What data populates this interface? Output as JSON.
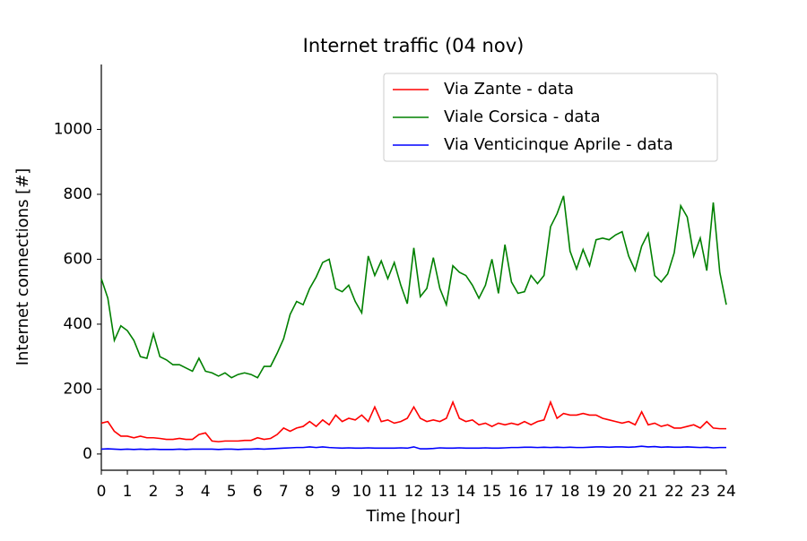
{
  "chart_data": {
    "type": "line",
    "title": "Internet traffic (04 nov)",
    "xlabel": "Time [hour]",
    "ylabel": "Internet connections [#]",
    "x": [
      0,
      0.25,
      0.5,
      0.75,
      1,
      1.25,
      1.5,
      1.75,
      2,
      2.25,
      2.5,
      2.75,
      3,
      3.25,
      3.5,
      3.75,
      4,
      4.25,
      4.5,
      4.75,
      5,
      5.25,
      5.5,
      5.75,
      6,
      6.25,
      6.5,
      6.75,
      7,
      7.25,
      7.5,
      7.75,
      8,
      8.25,
      8.5,
      8.75,
      9,
      9.25,
      9.5,
      9.75,
      10,
      10.25,
      10.5,
      10.75,
      11,
      11.25,
      11.5,
      11.75,
      12,
      12.25,
      12.5,
      12.75,
      13,
      13.25,
      13.5,
      13.75,
      14,
      14.25,
      14.5,
      14.75,
      15,
      15.25,
      15.5,
      15.75,
      16,
      16.25,
      16.5,
      16.75,
      17,
      17.25,
      17.5,
      17.75,
      18,
      18.25,
      18.5,
      18.75,
      19,
      19.25,
      19.5,
      19.75,
      20,
      20.25,
      20.5,
      20.75,
      21,
      21.25,
      21.5,
      21.75,
      22,
      22.25,
      22.5,
      22.75,
      23,
      23.25,
      23.5,
      23.75,
      24
    ],
    "series": [
      {
        "name": "Via Zante - data",
        "color": "#ff0000",
        "values": [
          95,
          100,
          70,
          55,
          55,
          50,
          55,
          50,
          50,
          48,
          45,
          45,
          48,
          45,
          45,
          60,
          65,
          40,
          38,
          40,
          40,
          40,
          42,
          42,
          50,
          45,
          48,
          60,
          80,
          70,
          80,
          85,
          100,
          85,
          105,
          90,
          120,
          100,
          110,
          105,
          120,
          100,
          145,
          100,
          105,
          95,
          100,
          110,
          145,
          110,
          100,
          105,
          100,
          110,
          160,
          110,
          100,
          105,
          90,
          95,
          85,
          95,
          90,
          95,
          90,
          100,
          90,
          100,
          105,
          160,
          110,
          125,
          120,
          120,
          125,
          120,
          120,
          110,
          105,
          100,
          95,
          100,
          90,
          130,
          90,
          95,
          85,
          90,
          80,
          80,
          85,
          90,
          80,
          100,
          80,
          78,
          78
        ]
      },
      {
        "name": "Viale Corsica - data",
        "color": "#008000",
        "values": [
          540,
          480,
          350,
          395,
          380,
          350,
          300,
          295,
          370,
          300,
          290,
          275,
          275,
          265,
          255,
          295,
          255,
          250,
          240,
          250,
          235,
          245,
          250,
          245,
          235,
          270,
          270,
          310,
          355,
          430,
          470,
          460,
          510,
          545,
          590,
          600,
          510,
          500,
          520,
          470,
          435,
          610,
          550,
          595,
          540,
          590,
          520,
          463,
          635,
          485,
          510,
          605,
          510,
          460,
          580,
          560,
          550,
          520,
          480,
          520,
          600,
          495,
          645,
          530,
          495,
          500,
          550,
          525,
          550,
          700,
          740,
          795,
          625,
          570,
          630,
          580,
          660,
          665,
          660,
          675,
          685,
          610,
          565,
          640,
          680,
          550,
          530,
          555,
          620,
          765,
          730,
          610,
          665,
          565,
          775,
          560,
          460
        ]
      },
      {
        "name": "Via Venticinque Aprile - data",
        "color": "#0000ff",
        "values": [
          15,
          16,
          15,
          14,
          15,
          14,
          15,
          14,
          15,
          14,
          14,
          14,
          15,
          14,
          15,
          15,
          15,
          15,
          14,
          15,
          15,
          14,
          15,
          15,
          16,
          15,
          16,
          17,
          18,
          19,
          20,
          20,
          22,
          20,
          22,
          20,
          19,
          18,
          19,
          18,
          18,
          19,
          18,
          18,
          18,
          18,
          19,
          18,
          22,
          16,
          16,
          17,
          19,
          18,
          18,
          19,
          18,
          18,
          18,
          19,
          18,
          18,
          19,
          20,
          20,
          21,
          21,
          20,
          21,
          20,
          21,
          20,
          21,
          20,
          20,
          21,
          22,
          22,
          21,
          22,
          22,
          21,
          22,
          24,
          22,
          23,
          21,
          22,
          21,
          21,
          22,
          21,
          20,
          21,
          19,
          20,
          20
        ]
      }
    ],
    "xlim": [
      0,
      24
    ],
    "ylim": [
      -50,
      1200
    ],
    "xticks": [
      0,
      1,
      2,
      3,
      4,
      5,
      6,
      7,
      8,
      9,
      10,
      11,
      12,
      13,
      14,
      15,
      16,
      17,
      18,
      19,
      20,
      21,
      22,
      23,
      24
    ],
    "yticks": [
      0,
      200,
      400,
      600,
      800,
      1000
    ],
    "legend": "upper right"
  }
}
